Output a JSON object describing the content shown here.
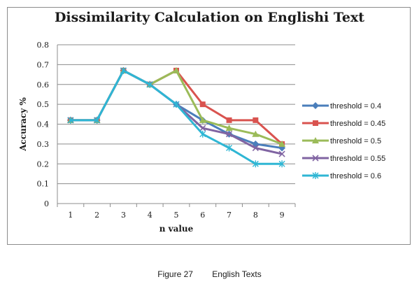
{
  "chart_data": {
    "type": "line",
    "title": "Dissimilarity Calculation on Englishi Text",
    "xlabel": "n value",
    "ylabel": "Accuracy %",
    "categories": [
      "1",
      "2",
      "3",
      "4",
      "5",
      "6",
      "7",
      "8",
      "9"
    ],
    "ylim": [
      0,
      0.8
    ],
    "yticks": [
      "0",
      "0.1",
      "0.2",
      "0.3",
      "0.4",
      "0.5",
      "0.6",
      "0.7",
      "0.8"
    ],
    "grid": true,
    "legend_position": "right",
    "series": [
      {
        "name": "threshold = 0.4",
        "color": "#4a7ebb",
        "marker": "diamond",
        "values": [
          0.42,
          0.42,
          0.67,
          0.6,
          0.5,
          0.42,
          0.35,
          0.3,
          0.28
        ]
      },
      {
        "name": "threshold = 0.45",
        "color": "#d9534f",
        "marker": "square",
        "values": [
          0.42,
          0.42,
          0.67,
          0.6,
          0.67,
          0.5,
          0.42,
          0.42,
          0.3
        ]
      },
      {
        "name": "threshold = 0.5",
        "color": "#9bbb59",
        "marker": "triangle",
        "values": [
          0.42,
          0.42,
          0.67,
          0.6,
          0.67,
          0.42,
          0.38,
          0.35,
          0.3
        ]
      },
      {
        "name": "threshold = 0.55",
        "color": "#8064a2",
        "marker": "x",
        "values": [
          0.42,
          0.42,
          0.67,
          0.6,
          0.5,
          0.38,
          0.35,
          0.28,
          0.25
        ]
      },
      {
        "name": "threshold = 0.6",
        "color": "#2fb6d4",
        "marker": "star",
        "values": [
          0.42,
          0.42,
          0.67,
          0.6,
          0.5,
          0.35,
          0.28,
          0.2,
          0.2
        ]
      }
    ]
  },
  "caption": {
    "figure_number": "Figure 27",
    "text": "English Texts"
  }
}
